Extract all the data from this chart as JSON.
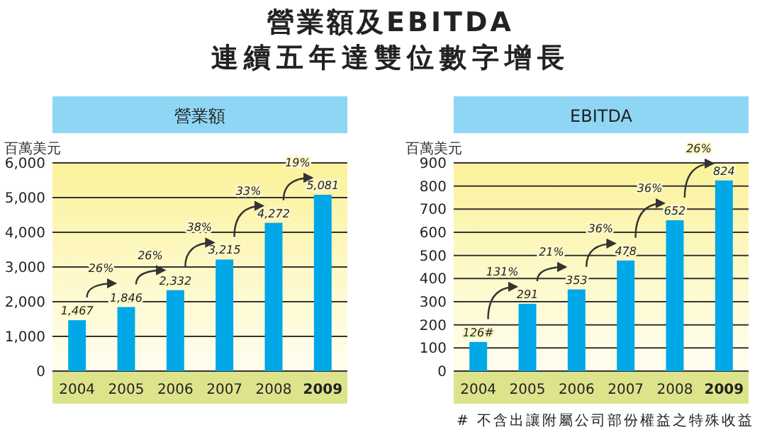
{
  "chart_data": [
    {
      "type": "other",
      "title": "營業額及EBITDA",
      "subtitle": "連續五年達雙位數字增長"
    },
    {
      "type": "bar",
      "title": "營業額",
      "ylabel": "百萬美元",
      "categories": [
        "2004",
        "2005",
        "2006",
        "2007",
        "2008",
        "2009"
      ],
      "values": [
        1467,
        1846,
        2332,
        3215,
        4272,
        5081
      ],
      "value_labels": [
        "1,467",
        "1,846",
        "2,332",
        "3,215",
        "4,272",
        "5,081"
      ],
      "color": "#00a8e8",
      "ylim": [
        0,
        6000
      ],
      "yticks": [
        {
          "value": 0,
          "label": "0"
        },
        {
          "value": 1000,
          "label": "1,000"
        },
        {
          "value": 2000,
          "label": "2,000"
        },
        {
          "value": 3000,
          "label": "3,000"
        },
        {
          "value": 4000,
          "label": "4,000"
        },
        {
          "value": 5000,
          "label": "5,000"
        },
        {
          "value": 6000,
          "label": "6,000"
        }
      ],
      "grid": "y",
      "annotations": [
        "26%",
        "26%",
        "38%",
        "33%",
        "19%"
      ]
    },
    {
      "type": "bar",
      "title": "EBITDA",
      "ylabel": "百萬美元",
      "categories": [
        "2004",
        "2005",
        "2006",
        "2007",
        "2008",
        "2009"
      ],
      "values": [
        126,
        291,
        353,
        478,
        652,
        824
      ],
      "value_labels": [
        "126#",
        "291",
        "353",
        "478",
        "652",
        "824"
      ],
      "color": "#00a8e8",
      "ylim": [
        0,
        900
      ],
      "yticks": [
        0,
        100,
        200,
        300,
        400,
        500,
        600,
        700,
        800,
        900
      ],
      "grid": "y",
      "annotations": [
        "131%",
        "21%",
        "36%",
        "36%",
        "26%",
        "# 不含出讓附屬公司部份權益之特殊收益"
      ]
    }
  ]
}
